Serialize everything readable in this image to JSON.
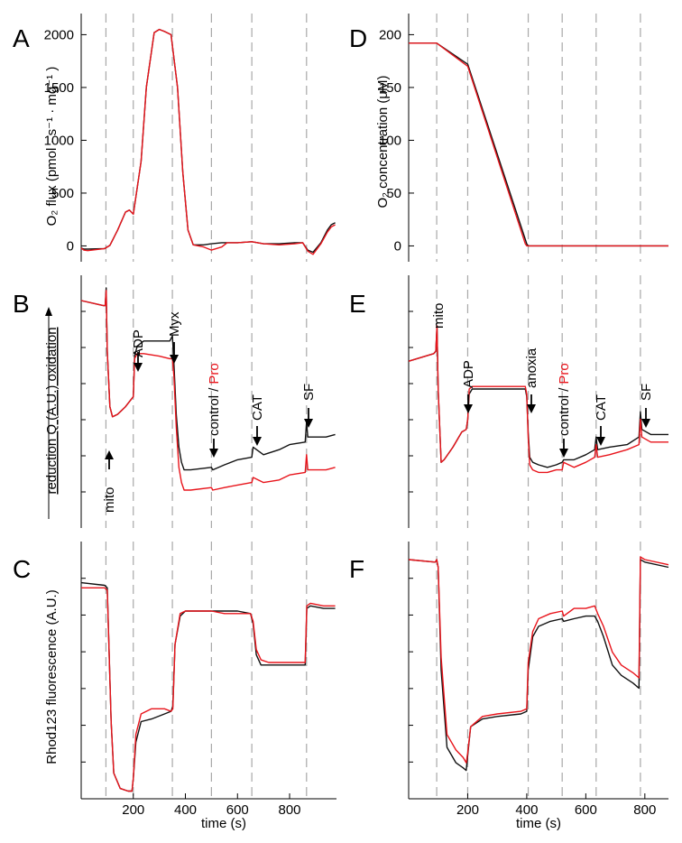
{
  "colors": {
    "control": "#111111",
    "pro": "#e8141b",
    "event_line": "#a8a8a8"
  },
  "axis_labels": {
    "left_top_y": "O₂ flux (pmol · s⁻¹ · mg⁻¹ )",
    "left_mid_y": "reduction  Q (A.U.)  oxidation",
    "left_bot_y": "Rhod123 fluorescence (A.U.)",
    "right_top_y": "O₂ concentration (μM)",
    "x_label": "time (s)"
  },
  "annotations_left": {
    "mito": "mito",
    "adp": "ADP",
    "myx": "Myx",
    "control": "control /",
    "pro": "Pro",
    "cat": "CAT",
    "sf": "SF"
  },
  "annotations_right": {
    "mito": "mito",
    "adp": "ADP",
    "anoxia": "anoxia",
    "control": "control /",
    "pro": "Pro",
    "cat": "CAT",
    "sf": "SF"
  },
  "chart_data": [
    {
      "panel": "A",
      "type": "line",
      "ylabel": "O₂ flux (pmol · s⁻¹ · mg⁻¹ )",
      "xlim": [
        0,
        980
      ],
      "ylim": [
        -150,
        2200
      ],
      "yticks": [
        0,
        500,
        1000,
        1500,
        2000
      ],
      "event_times": [
        95,
        200,
        350,
        500,
        655,
        865
      ],
      "series": [
        {
          "color": "black",
          "x": [
            0,
            10,
            25,
            90,
            110,
            140,
            170,
            185,
            200,
            230,
            250,
            280,
            300,
            320,
            345,
            370,
            390,
            410,
            430,
            470,
            500,
            540,
            560,
            600,
            655,
            700,
            760,
            820,
            850,
            870,
            890,
            920,
            945,
            960,
            975
          ],
          "y": [
            -20,
            -30,
            -30,
            -25,
            5,
            150,
            320,
            340,
            300,
            800,
            1500,
            2020,
            2050,
            2030,
            2000,
            1500,
            700,
            150,
            10,
            10,
            20,
            30,
            30,
            30,
            40,
            20,
            20,
            30,
            30,
            -40,
            -60,
            30,
            150,
            200,
            220
          ]
        },
        {
          "color": "red",
          "x": [
            0,
            10,
            25,
            90,
            110,
            140,
            170,
            185,
            200,
            230,
            250,
            280,
            300,
            320,
            345,
            370,
            390,
            410,
            430,
            470,
            500,
            540,
            560,
            600,
            655,
            700,
            760,
            820,
            850,
            870,
            890,
            920,
            945,
            960,
            975
          ],
          "y": [
            -20,
            -40,
            -45,
            -25,
            5,
            150,
            320,
            340,
            300,
            800,
            1500,
            2020,
            2050,
            2030,
            2000,
            1500,
            700,
            150,
            10,
            -10,
            -40,
            -10,
            30,
            30,
            40,
            20,
            10,
            20,
            30,
            -50,
            -80,
            20,
            130,
            180,
            200
          ]
        }
      ]
    },
    {
      "panel": "B",
      "type": "line",
      "ylabel": "reduction  Q (A.U.)  oxidation",
      "xlim": [
        0,
        980
      ],
      "ylim": [
        0,
        10
      ],
      "event_times": [
        95,
        200,
        350,
        500,
        655,
        865
      ],
      "annotations": [
        "mito",
        "ADP",
        "Myx",
        "control /",
        "Pro",
        "CAT",
        "SF"
      ],
      "series": [
        {
          "color": "black",
          "x": [
            0,
            85,
            92,
            96,
            100,
            110,
            120,
            140,
            170,
            200,
            205,
            215,
            240,
            300,
            340,
            350,
            356,
            365,
            375,
            385,
            395,
            420,
            500,
            505,
            550,
            600,
            655,
            660,
            700,
            760,
            800,
            860,
            865,
            870,
            900,
            940,
            975
          ],
          "y": [
            9.0,
            8.8,
            8.8,
            9.5,
            7.0,
            4.8,
            4.4,
            4.5,
            4.8,
            5.2,
            6.8,
            7.2,
            7.4,
            7.4,
            7.4,
            7.6,
            6.5,
            4.5,
            3.2,
            2.6,
            2.3,
            2.3,
            2.4,
            2.3,
            2.5,
            2.7,
            2.8,
            3.2,
            2.9,
            3.1,
            3.3,
            3.4,
            4.2,
            3.6,
            3.6,
            3.6,
            3.7
          ]
        },
        {
          "color": "red",
          "x": [
            0,
            85,
            92,
            96,
            100,
            110,
            120,
            140,
            170,
            200,
            205,
            215,
            240,
            300,
            340,
            350,
            356,
            365,
            375,
            385,
            395,
            420,
            500,
            505,
            550,
            600,
            655,
            660,
            700,
            760,
            800,
            860,
            865,
            870,
            900,
            940,
            975
          ],
          "y": [
            9.0,
            8.8,
            8.8,
            9.4,
            7.0,
            4.8,
            4.4,
            4.5,
            4.8,
            5.2,
            6.7,
            6.9,
            6.9,
            6.8,
            6.7,
            6.7,
            6.0,
            4.0,
            2.4,
            1.8,
            1.5,
            1.5,
            1.6,
            1.5,
            1.6,
            1.7,
            1.8,
            2.0,
            1.8,
            1.9,
            2.1,
            2.2,
            2.9,
            2.3,
            2.3,
            2.3,
            2.4
          ]
        }
      ]
    },
    {
      "panel": "C",
      "type": "line",
      "ylabel": "Rhod123 fluorescence (A.U.)",
      "xlim": [
        0,
        980
      ],
      "ylim": [
        0,
        10
      ],
      "event_times": [
        95,
        200,
        350,
        500,
        655,
        865
      ],
      "series": [
        {
          "color": "black",
          "x": [
            0,
            90,
            100,
            115,
            125,
            150,
            180,
            195,
            200,
            210,
            230,
            270,
            320,
            345,
            352,
            360,
            380,
            400,
            450,
            500,
            550,
            600,
            650,
            660,
            672,
            690,
            720,
            800,
            860,
            866,
            880,
            930,
            975
          ],
          "y": [
            8.4,
            8.3,
            8.2,
            3.0,
            1.0,
            0.4,
            0.3,
            0.3,
            0.8,
            2.2,
            3.0,
            3.1,
            3.3,
            3.4,
            3.6,
            6.0,
            7.1,
            7.3,
            7.3,
            7.3,
            7.3,
            7.3,
            7.2,
            6.8,
            5.6,
            5.2,
            5.2,
            5.2,
            5.2,
            7.4,
            7.5,
            7.4,
            7.4
          ]
        },
        {
          "color": "red",
          "x": [
            0,
            90,
            100,
            115,
            125,
            150,
            180,
            195,
            200,
            210,
            230,
            270,
            320,
            345,
            352,
            360,
            380,
            400,
            450,
            500,
            550,
            600,
            650,
            660,
            672,
            690,
            720,
            800,
            860,
            866,
            880,
            930,
            975
          ],
          "y": [
            8.2,
            8.2,
            8.1,
            3.0,
            1.0,
            0.4,
            0.3,
            0.3,
            0.8,
            2.5,
            3.3,
            3.5,
            3.5,
            3.4,
            3.5,
            6.0,
            7.2,
            7.3,
            7.3,
            7.3,
            7.2,
            7.2,
            7.2,
            6.9,
            5.8,
            5.4,
            5.3,
            5.3,
            5.3,
            7.5,
            7.6,
            7.5,
            7.5
          ]
        }
      ]
    },
    {
      "panel": "D",
      "type": "line",
      "ylabel": "O₂ concentration (μM)",
      "xlim": [
        0,
        880
      ],
      "ylim": [
        -15,
        220
      ],
      "yticks": [
        0,
        50,
        100,
        150,
        200
      ],
      "event_times": [
        95,
        200,
        405,
        520,
        635,
        785
      ],
      "series": [
        {
          "color": "black",
          "x": [
            0,
            95,
            200,
            400,
            405,
            880
          ],
          "y": [
            192,
            192,
            172,
            2,
            0,
            0
          ]
        },
        {
          "color": "red",
          "x": [
            0,
            95,
            200,
            395,
            400,
            880
          ],
          "y": [
            192,
            192,
            170,
            2,
            0,
            0
          ]
        }
      ]
    },
    {
      "panel": "E",
      "type": "line",
      "ylabel": "",
      "xlim": [
        0,
        880
      ],
      "ylim": [
        0,
        10
      ],
      "event_times": [
        95,
        200,
        405,
        520,
        635,
        785
      ],
      "annotations": [
        "mito",
        "ADP",
        "anoxia",
        "control /",
        "Pro",
        "CAT",
        "SF"
      ],
      "series": [
        {
          "color": "black",
          "x": [
            0,
            85,
            92,
            96,
            100,
            110,
            120,
            150,
            180,
            195,
            200,
            205,
            215,
            300,
            380,
            395,
            400,
            405,
            410,
            420,
            440,
            470,
            500,
            520,
            525,
            560,
            600,
            630,
            635,
            640,
            680,
            740,
            780,
            785,
            790,
            820,
            880
          ],
          "y": [
            6.6,
            6.9,
            7.0,
            8.0,
            5.5,
            2.6,
            2.7,
            3.2,
            3.8,
            3.9,
            4.3,
            5.3,
            5.5,
            5.5,
            5.5,
            5.5,
            5.2,
            3.8,
            2.8,
            2.6,
            2.5,
            2.4,
            2.5,
            2.6,
            2.7,
            2.7,
            2.9,
            3.1,
            3.6,
            3.1,
            3.2,
            3.3,
            3.6,
            4.6,
            3.9,
            3.7,
            3.7
          ]
        },
        {
          "color": "red",
          "x": [
            0,
            85,
            92,
            96,
            100,
            110,
            120,
            150,
            180,
            195,
            200,
            205,
            215,
            300,
            380,
            395,
            400,
            405,
            410,
            420,
            440,
            470,
            500,
            520,
            525,
            560,
            600,
            630,
            635,
            640,
            680,
            740,
            780,
            785,
            790,
            820,
            880
          ],
          "y": [
            6.6,
            6.9,
            7.0,
            8.0,
            5.5,
            2.6,
            2.7,
            3.2,
            3.8,
            3.9,
            4.3,
            5.5,
            5.6,
            5.6,
            5.6,
            5.6,
            5.3,
            3.6,
            2.5,
            2.3,
            2.2,
            2.2,
            2.3,
            2.3,
            2.6,
            2.4,
            2.6,
            2.8,
            3.3,
            2.8,
            2.9,
            3.1,
            3.3,
            4.3,
            3.6,
            3.4,
            3.4
          ]
        }
      ]
    },
    {
      "panel": "F",
      "type": "line",
      "ylabel": "",
      "xlim": [
        0,
        880
      ],
      "ylim": [
        0,
        10
      ],
      "event_times": [
        95,
        200,
        405,
        520,
        635,
        785
      ],
      "series": [
        {
          "color": "black",
          "x": [
            0,
            90,
            95,
            100,
            110,
            130,
            160,
            185,
            195,
            200,
            210,
            250,
            300,
            380,
            400,
            405,
            420,
            440,
            480,
            520,
            525,
            560,
            600,
            630,
            640,
            660,
            690,
            720,
            760,
            780,
            785,
            800,
            880
          ],
          "y": [
            9.3,
            9.2,
            9.3,
            9.0,
            5.0,
            2.0,
            1.4,
            1.2,
            1.1,
            1.7,
            2.8,
            3.1,
            3.2,
            3.3,
            3.4,
            5.0,
            6.3,
            6.7,
            6.9,
            7.0,
            6.9,
            7.0,
            7.1,
            7.1,
            6.9,
            6.3,
            5.2,
            4.8,
            4.5,
            4.3,
            9.3,
            9.2,
            9.0
          ]
        },
        {
          "color": "red",
          "x": [
            0,
            90,
            95,
            100,
            110,
            130,
            160,
            185,
            195,
            200,
            210,
            250,
            300,
            380,
            400,
            405,
            420,
            440,
            480,
            520,
            525,
            560,
            600,
            630,
            640,
            660,
            690,
            720,
            760,
            780,
            785,
            800,
            880
          ],
          "y": [
            9.3,
            9.2,
            9.3,
            9.0,
            5.5,
            2.5,
            1.9,
            1.6,
            1.4,
            1.8,
            2.8,
            3.2,
            3.3,
            3.4,
            3.5,
            5.3,
            6.5,
            7.0,
            7.2,
            7.3,
            7.1,
            7.4,
            7.4,
            7.5,
            7.2,
            6.7,
            5.7,
            5.2,
            4.9,
            4.7,
            9.4,
            9.3,
            9.1
          ]
        }
      ]
    }
  ],
  "x_axis": {
    "left_ticks": [
      200,
      400,
      600,
      800
    ],
    "right_ticks": [
      200,
      400,
      600,
      800
    ]
  }
}
